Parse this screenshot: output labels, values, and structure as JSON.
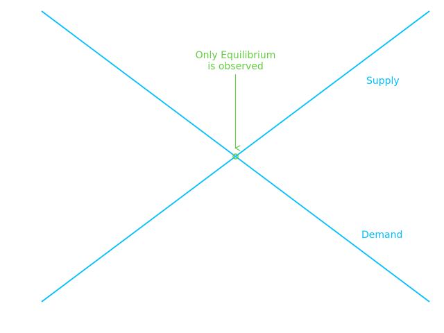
{
  "chart_data": {
    "type": "line",
    "title": "",
    "xlabel": "",
    "ylabel": "",
    "axes_visible": false,
    "grid": false,
    "x": [
      0,
      10
    ],
    "xlim": [
      0,
      10
    ],
    "ylim": [
      0,
      10
    ],
    "series": [
      {
        "name": "Supply",
        "values": [
          0,
          10
        ],
        "color": "#00bfff"
      },
      {
        "name": "Demand",
        "values": [
          10,
          0
        ],
        "color": "#00bfff"
      }
    ],
    "equilibrium": {
      "x": 5,
      "y": 5,
      "marker": "circle",
      "color": "#66cc44"
    },
    "annotation": {
      "text": "Only Equilibrium\nis observed",
      "target": {
        "x": 5,
        "y": 5
      },
      "color": "#66cc44"
    }
  }
}
